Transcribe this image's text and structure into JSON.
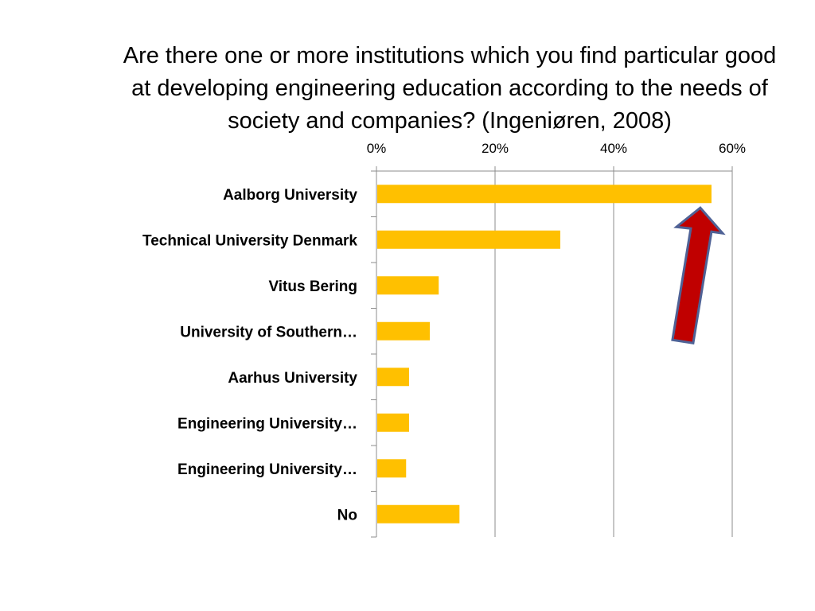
{
  "chart_data": {
    "type": "bar",
    "orientation": "horizontal",
    "title": "Are there one or more institutions which you find particular good at developing engineering education according to the needs of society and companies? (Ingeniøren, 2008)",
    "categories": [
      "Aalborg University",
      "Technical University Denmark",
      "Vitus Bering",
      "University of Southern…",
      "Aarhus University",
      "Engineering University…",
      "Engineering University…",
      "No"
    ],
    "values": [
      56.5,
      31,
      10.5,
      9,
      5.5,
      5.5,
      5,
      14
    ],
    "value_unit": "%",
    "xlim": [
      0,
      60
    ],
    "x_ticks": [
      "0%",
      "20%",
      "40%",
      "60%"
    ],
    "x_axis_position": "top",
    "grid": true,
    "legend": "none",
    "bar_color": "#FFC000",
    "annotation": {
      "type": "arrow",
      "points_to": "Aalborg University",
      "fill": "#C00000",
      "stroke": "#4F6296"
    }
  }
}
